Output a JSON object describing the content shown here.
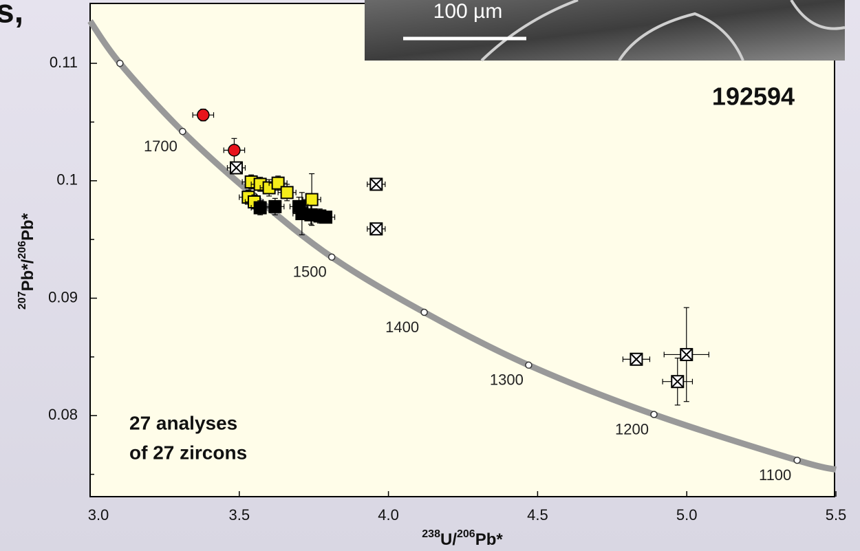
{
  "slide_title_fragment": "s,",
  "inset_scale_label": "100 µm",
  "chart_data": {
    "type": "concordia",
    "sample_label": "192594",
    "note_lines": [
      "27 analyses",
      "of 27 zircons"
    ],
    "x_label_parts": [
      {
        "text": "238",
        "sup": true
      },
      {
        "text": "U/",
        "sup": false
      },
      {
        "text": "206",
        "sup": true
      },
      {
        "text": "Pb*",
        "sup": false
      }
    ],
    "y_label_parts": [
      {
        "text": "207",
        "sup": true
      },
      {
        "text": "Pb*/",
        "sup": false
      },
      {
        "text": "206",
        "sup": true
      },
      {
        "text": "Pb*",
        "sup": false
      }
    ],
    "xlim": [
      3.0,
      5.5
    ],
    "ylim": [
      0.0731,
      0.1151
    ],
    "xticks": [
      {
        "value": 3.0,
        "label": "3.0"
      },
      {
        "value": 3.5,
        "label": "3.5"
      },
      {
        "value": 4.0,
        "label": "4.0"
      },
      {
        "value": 4.5,
        "label": "4.5"
      },
      {
        "value": 5.0,
        "label": "5.0"
      },
      {
        "value": 5.5,
        "label": "5.5"
      }
    ],
    "yticks": [
      0.08,
      0.09,
      0.1,
      0.11
    ],
    "yminor_ticks": [
      0.075,
      0.085,
      0.095,
      0.105
    ],
    "concordia": {
      "color": "#999999",
      "x": [
        3.0,
        3.1,
        3.31,
        3.55,
        3.81,
        4.12,
        4.47,
        4.89,
        5.37,
        5.5
      ],
      "y": [
        0.1136,
        0.11,
        0.1042,
        0.0987,
        0.0935,
        0.0888,
        0.0843,
        0.0801,
        0.0762,
        0.0754
      ]
    },
    "age_ticks": {
      "x": [
        3.1,
        3.31,
        3.55,
        3.81,
        4.12,
        4.47,
        4.89,
        5.37
      ],
      "y": [
        0.11,
        0.1042,
        0.0987,
        0.0935,
        0.0888,
        0.0843,
        0.0801,
        0.0762
      ],
      "labels": [
        null,
        1700,
        null,
        1500,
        1400,
        1300,
        1200,
        1100
      ]
    },
    "series": [
      {
        "marker": "circle",
        "color": "#e8141c",
        "points": [
          {
            "x": 3.379,
            "y": 0.1056,
            "xerr": 0.035,
            "yerr": 0.0005
          },
          {
            "x": 3.483,
            "y": 0.1026,
            "xerr": 0.035,
            "yerr": 0.001
          }
        ]
      },
      {
        "marker": "square",
        "color": "#f4ec1a",
        "points": [
          {
            "x": 3.54,
            "y": 0.0999,
            "xerr": 0.03,
            "yerr": 0.0006
          },
          {
            "x": 3.57,
            "y": 0.0997,
            "xerr": 0.03,
            "yerr": 0.0006
          },
          {
            "x": 3.6,
            "y": 0.0994,
            "xerr": 0.03,
            "yerr": 0.0007
          },
          {
            "x": 3.63,
            "y": 0.0998,
            "xerr": 0.03,
            "yerr": 0.0006
          },
          {
            "x": 3.53,
            "y": 0.0986,
            "xerr": 0.03,
            "yerr": 0.0006
          },
          {
            "x": 3.55,
            "y": 0.0982,
            "xerr": 0.03,
            "yerr": 0.0006
          },
          {
            "x": 3.66,
            "y": 0.099,
            "xerr": 0.03,
            "yerr": 0.0007
          },
          {
            "x": 3.743,
            "y": 0.0984,
            "xerr": 0.03,
            "yerr": 0.0022
          }
        ]
      },
      {
        "marker": "square",
        "color": "#000000",
        "points": [
          {
            "x": 3.57,
            "y": 0.0977,
            "xerr": 0.03,
            "yerr": 0.0006
          },
          {
            "x": 3.62,
            "y": 0.0978,
            "xerr": 0.03,
            "yerr": 0.0007
          },
          {
            "x": 3.7,
            "y": 0.0978,
            "xerr": 0.03,
            "yerr": 0.0008
          },
          {
            "x": 3.71,
            "y": 0.0972,
            "xerr": 0.03,
            "yerr": 0.0018
          },
          {
            "x": 3.74,
            "y": 0.0971,
            "xerr": 0.03,
            "yerr": 0.0008
          },
          {
            "x": 3.77,
            "y": 0.097,
            "xerr": 0.03,
            "yerr": 0.0006
          },
          {
            "x": 3.79,
            "y": 0.0969,
            "xerr": 0.03,
            "yerr": 0.0005
          }
        ]
      },
      {
        "marker": "crossed-square",
        "color": "#ffffff",
        "points": [
          {
            "x": 3.49,
            "y": 0.1011,
            "xerr": 0.03,
            "yerr": 0.0005
          },
          {
            "x": 3.959,
            "y": 0.0997,
            "xerr": 0.03,
            "yerr": 0.0004
          },
          {
            "x": 3.959,
            "y": 0.0959,
            "xerr": 0.03,
            "yerr": 0.0004
          },
          {
            "x": 4.831,
            "y": 0.0848,
            "xerr": 0.045,
            "yerr": 0.0005
          },
          {
            "x": 4.999,
            "y": 0.0852,
            "xerr": 0.075,
            "yerr": 0.004
          },
          {
            "x": 4.969,
            "y": 0.0829,
            "xerr": 0.05,
            "yerr": 0.002
          }
        ]
      }
    ]
  }
}
